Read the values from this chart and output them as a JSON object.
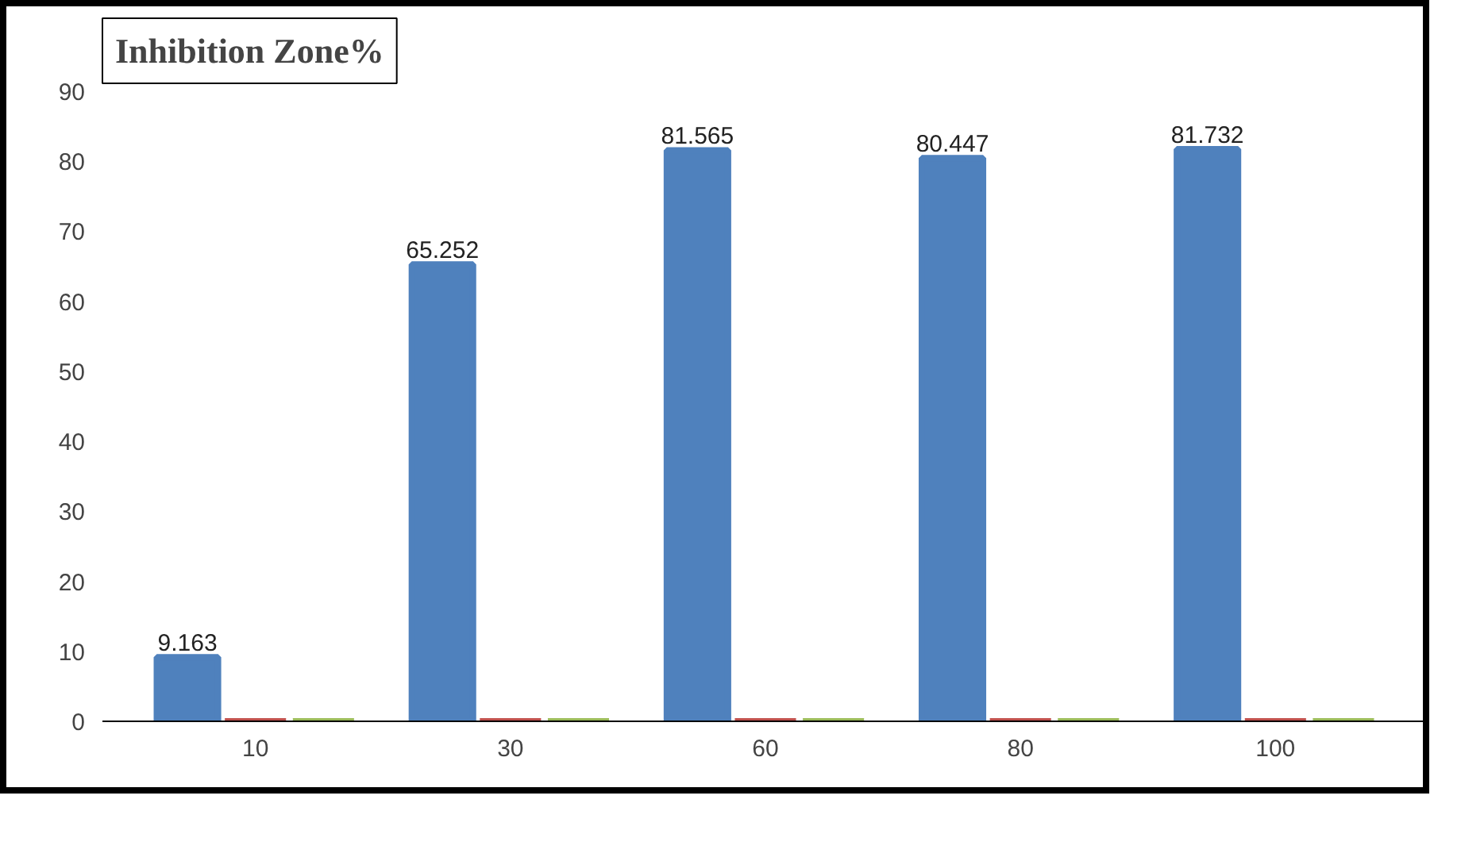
{
  "chart_data": {
    "type": "bar",
    "title": "Inhibition Zone%",
    "categories": [
      "10",
      "30",
      "60",
      "80",
      "100"
    ],
    "series": [
      {
        "color": "#4f81bd",
        "values": [
          9.163,
          65.252,
          81.565,
          80.447,
          81.732
        ],
        "value_labels": [
          "9.163",
          "65.252",
          "81.565",
          "80.447",
          "81.732"
        ]
      },
      {
        "color": "#c0504d",
        "values": [
          0,
          0,
          0,
          0,
          0
        ]
      },
      {
        "color": "#9bbb59",
        "values": [
          0,
          0,
          0,
          0,
          0
        ]
      }
    ],
    "ylim": [
      0,
      90
    ],
    "yticks": [
      0,
      10,
      20,
      30,
      40,
      50,
      60,
      70,
      80,
      90
    ],
    "grid": false
  }
}
